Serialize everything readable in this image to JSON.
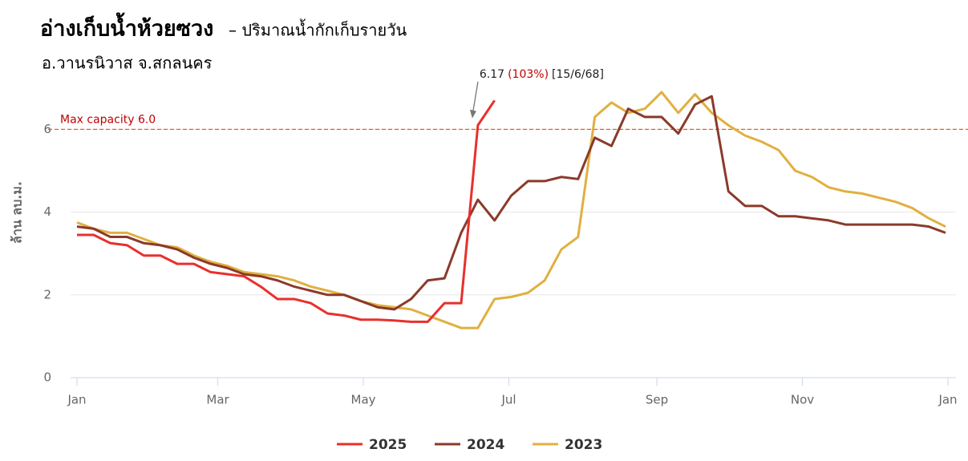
{
  "chart_data": {
    "type": "line",
    "title": "อ่างเก็บน้ำห้วยซวง",
    "title_suffix": "– ปริมาณน้ำกักเก็บรายวัน",
    "subtitle": "อ.วานรนิวาส จ.สกลนคร",
    "y_label": "ล้าน ลบ.ม.",
    "x": [
      0,
      7,
      14,
      21,
      28,
      35,
      42,
      49,
      56,
      63,
      70,
      77,
      84,
      91,
      98,
      105,
      112,
      119,
      126,
      133,
      140,
      147,
      154,
      161,
      168,
      175,
      182,
      189,
      196,
      203,
      210,
      217,
      224,
      231,
      238,
      245,
      252,
      259,
      266,
      273,
      280,
      287,
      294,
      301,
      308,
      315,
      322,
      329,
      336,
      343,
      350,
      357,
      364
    ],
    "xlim": [
      0,
      365
    ],
    "xticks": [
      {
        "value": 0,
        "label": "Jan"
      },
      {
        "value": 59,
        "label": "Mar"
      },
      {
        "value": 120,
        "label": "May"
      },
      {
        "value": 181,
        "label": "Jul"
      },
      {
        "value": 243,
        "label": "Sep"
      },
      {
        "value": 304,
        "label": "Nov"
      },
      {
        "value": 365,
        "label": "Jan"
      }
    ],
    "ylim": [
      0,
      7.5
    ],
    "yticks": [
      0,
      2,
      4,
      6
    ],
    "grid": true,
    "legend": "bottom",
    "reference_line": {
      "value": 6,
      "label": "Max capacity 6.0",
      "color": "#e8601c"
    },
    "annotation": {
      "x": 166,
      "y": 6.17,
      "value_label": "6.17",
      "percent": "(103%)",
      "date": "[15/6/68]"
    },
    "series": [
      {
        "name": "2025",
        "color": "#e8302c",
        "values": [
          3.45,
          3.45,
          3.25,
          3.2,
          2.95,
          2.95,
          2.75,
          2.75,
          2.55,
          2.5,
          2.45,
          2.2,
          1.9,
          1.9,
          1.8,
          1.55,
          1.5,
          1.4,
          1.4,
          1.38,
          1.35,
          1.35,
          1.8,
          1.8,
          6.1,
          6.7,
          null,
          null,
          null,
          null,
          null,
          null,
          null,
          null,
          null,
          null,
          null,
          null,
          null,
          null,
          null,
          null,
          null,
          null,
          null,
          null,
          null,
          null,
          null,
          null,
          null,
          null,
          null
        ]
      },
      {
        "name": "2024",
        "color": "#8b3a2a",
        "values": [
          3.65,
          3.6,
          3.4,
          3.4,
          3.25,
          3.2,
          3.1,
          2.9,
          2.75,
          2.65,
          2.5,
          2.45,
          2.35,
          2.2,
          2.1,
          2.0,
          2.0,
          1.85,
          1.7,
          1.65,
          1.9,
          2.35,
          2.4,
          3.5,
          4.3,
          3.8,
          4.4,
          4.75,
          4.75,
          4.85,
          4.8,
          5.8,
          5.6,
          6.5,
          6.3,
          6.3,
          5.9,
          6.6,
          6.8,
          4.5,
          4.15,
          4.15,
          3.9,
          3.9,
          3.85,
          3.8,
          3.7,
          3.7,
          3.7,
          3.7,
          3.7,
          3.65,
          3.5
        ]
      },
      {
        "name": "2023",
        "color": "#e0b040",
        "values": [
          3.75,
          3.6,
          3.5,
          3.5,
          3.35,
          3.2,
          3.15,
          2.95,
          2.8,
          2.7,
          2.55,
          2.5,
          2.45,
          2.35,
          2.2,
          2.1,
          2.0,
          1.85,
          1.75,
          1.7,
          1.65,
          1.5,
          1.35,
          1.2,
          1.2,
          1.9,
          1.95,
          2.05,
          2.35,
          3.1,
          3.4,
          6.3,
          6.65,
          6.4,
          6.5,
          6.9,
          6.4,
          6.85,
          6.4,
          6.1,
          5.85,
          5.7,
          5.5,
          5.0,
          4.85,
          4.6,
          4.5,
          4.45,
          4.35,
          4.25,
          4.1,
          3.85,
          3.65
        ]
      }
    ]
  }
}
